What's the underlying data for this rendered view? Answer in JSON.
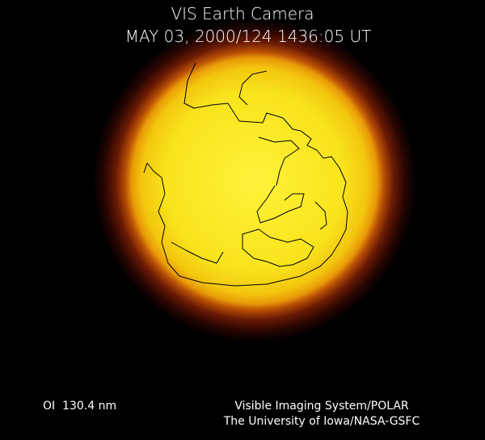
{
  "header": {
    "title": "VIS Earth Camera",
    "timestamp": "MAY 03, 2000/124 1436:05 UT"
  },
  "footer": {
    "wavelength": "OI  130.4 nm",
    "instrument": "Visible Imaging System/POLAR",
    "institution": "The University of Iowa/NASA-GSFC"
  }
}
